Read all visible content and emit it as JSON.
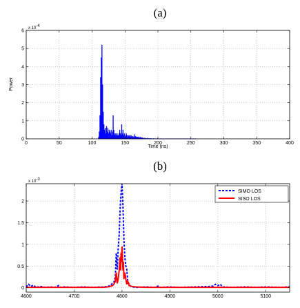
{
  "chart_data": [
    {
      "panel_label": "(a)",
      "type": "bar",
      "xlabel": "Time (ns)",
      "ylabel": "Power",
      "exponent_label": "x 10",
      "exponent_power": "-4",
      "xlim": [
        0,
        400
      ],
      "ylim": [
        0,
        0.0006
      ],
      "xticks": [
        0,
        50,
        100,
        150,
        200,
        250,
        300,
        350,
        400
      ],
      "yticks": [
        0,
        0.0001,
        0.0002,
        0.0003,
        0.0004,
        0.0005,
        0.0006
      ],
      "ytick_labels": [
        "0",
        "1",
        "2",
        "3",
        "4",
        "5",
        "6"
      ],
      "grid": true,
      "color": "#0000ff",
      "series": [
        {
          "x": [
            110,
            111,
            112,
            113,
            114,
            115,
            116,
            117,
            118,
            119,
            120,
            121,
            122,
            123,
            124,
            125,
            126,
            127,
            128,
            129,
            130,
            131,
            132,
            133,
            134,
            135,
            136,
            137,
            138,
            139,
            140,
            141,
            142,
            143,
            144,
            145,
            146,
            147,
            148,
            149,
            150,
            151,
            152,
            153,
            154,
            155,
            156,
            157,
            158,
            159,
            160,
            161,
            162,
            163,
            164,
            165,
            166,
            167,
            168,
            169,
            170,
            171,
            172,
            173,
            174,
            175,
            176,
            177,
            178,
            180,
            182,
            184,
            186,
            188,
            190,
            193,
            196,
            199,
            203,
            207,
            212,
            217,
            222,
            228,
            235,
            242,
            250,
            258
          ],
          "values": [
            1e-05,
            4e-05,
            0.00013,
            0.00034,
            0.00045,
            0.00052,
            0.0003,
            0.00015,
            8e-05,
            5e-05,
            6e-05,
            3e-05,
            7e-05,
            4e-05,
            6e-05,
            3e-05,
            5e-05,
            4e-05,
            3e-05,
            5e-05,
            2e-05,
            4e-05,
            0.00013,
            5e-05,
            3e-05,
            2e-05,
            3e-05,
            2e-05,
            3e-05,
            2e-05,
            2e-05,
            3e-05,
            5e-05,
            3e-05,
            2e-05,
            8e-05,
            3e-05,
            5e-05,
            2e-05,
            3e-05,
            1e-05,
            2e-05,
            3e-05,
            2e-05,
            1e-05,
            2e-05,
            1.5e-05,
            2e-05,
            1e-05,
            2e-05,
            1.5e-05,
            1e-05,
            1.5e-05,
            1e-05,
            2.5e-05,
            1e-05,
            1.5e-05,
            1e-05,
            1.2e-05,
            1e-05,
            8e-06,
            1.2e-05,
            6e-06,
            1e-05,
            6e-06,
            8e-06,
            5e-06,
            7e-06,
            4e-06,
            6e-06,
            4e-06,
            5e-06,
            3e-06,
            4e-06,
            3e-06,
            3e-06,
            2e-06,
            3e-06,
            2e-06,
            2e-06,
            1.5e-06,
            1.5e-06,
            1e-06,
            1e-06,
            8e-07,
            6e-07,
            5e-07,
            4e-07
          ]
        }
      ]
    },
    {
      "panel_label": "(b)",
      "type": "line",
      "exponent_label": "x 10",
      "exponent_power": "-3",
      "xlim": [
        4600,
        5150
      ],
      "ylim": [
        -0.0001,
        0.0024
      ],
      "xticks": [
        4600,
        4700,
        4800,
        4900,
        5000,
        5100
      ],
      "yticks": [
        0,
        0.0005,
        0.001,
        0.0015,
        0.002
      ],
      "ytick_labels": [
        "0",
        "0.5",
        "1",
        "1.5",
        "2"
      ],
      "grid": true,
      "legend": "top-right",
      "series": [
        {
          "name": "SIMO LOS",
          "color": "#0000ff",
          "style": "dashed",
          "x": [
            4600,
            4605,
            4610,
            4615,
            4620,
            4630,
            4640,
            4650,
            4660,
            4668,
            4672,
            4680,
            4700,
            4720,
            4740,
            4760,
            4770,
            4775,
            4780,
            4783,
            4786,
            4788,
            4790,
            4792,
            4794,
            4796,
            4798,
            4800,
            4802,
            4804,
            4806,
            4808,
            4810,
            4812,
            4815,
            4818,
            4822,
            4830,
            4850,
            4870,
            4875,
            4880,
            4900,
            4920,
            4950,
            4980,
            4990,
            4995,
            5000,
            5005,
            5010,
            5030,
            5060,
            5080,
            5100,
            5130,
            5150
          ],
          "values": [
            2e-05,
            8e-05,
            3e-05,
            6e-05,
            1e-05,
            3e-05,
            1e-05,
            2e-05,
            1e-05,
            5e-05,
            1e-05,
            2e-05,
            1e-05,
            2e-05,
            1e-05,
            2e-05,
            3e-05,
            5e-05,
            0.0001,
            0.00012,
            0.00025,
            0.0008,
            0.00042,
            0.0009,
            0.0012,
            0.0018,
            0.0022,
            0.0024,
            0.0019,
            0.0011,
            0.0007,
            0.0005,
            0.00042,
            0.00015,
            8e-05,
            4e-05,
            2e-05,
            1e-05,
            2e-05,
            1e-05,
            4e-05,
            1e-05,
            2e-05,
            1e-05,
            2e-05,
            3e-05,
            4e-05,
            8e-05,
            5e-05,
            8e-05,
            2e-05,
            1e-05,
            2e-05,
            1e-05,
            2e-05,
            1e-05,
            2e-05
          ]
        },
        {
          "name": "SISO LOS",
          "color": "#ff0000",
          "style": "solid",
          "x": [
            4600,
            4620,
            4640,
            4660,
            4680,
            4700,
            4720,
            4740,
            4760,
            4770,
            4775,
            4780,
            4783,
            4786,
            4788,
            4790,
            4792,
            4794,
            4796,
            4797,
            4798,
            4799,
            4800,
            4801,
            4802,
            4803,
            4804,
            4806,
            4808,
            4810,
            4812,
            4815,
            4820,
            4830,
            4850,
            4880,
            4900,
            4950,
            5000,
            5050,
            5100,
            5150
          ],
          "values": [
            1e-05,
            1e-05,
            1e-05,
            1e-05,
            1e-05,
            1e-05,
            1e-05,
            1e-05,
            1e-05,
            2e-05,
            3e-05,
            5e-05,
            8e-05,
            0.00015,
            0.00035,
            0.0001,
            0.0002,
            0.0004,
            0.0007,
            0.0004,
            0.0008,
            0.0006,
            0.00095,
            0.0007,
            0.0004,
            0.0006,
            0.0002,
            0.00035,
            0.0002,
            8e-05,
            0.00015,
            5e-05,
            3e-05,
            2e-05,
            1e-05,
            1e-05,
            1e-05,
            1e-05,
            1e-05,
            1e-05,
            1e-05,
            1e-05
          ]
        }
      ]
    }
  ]
}
